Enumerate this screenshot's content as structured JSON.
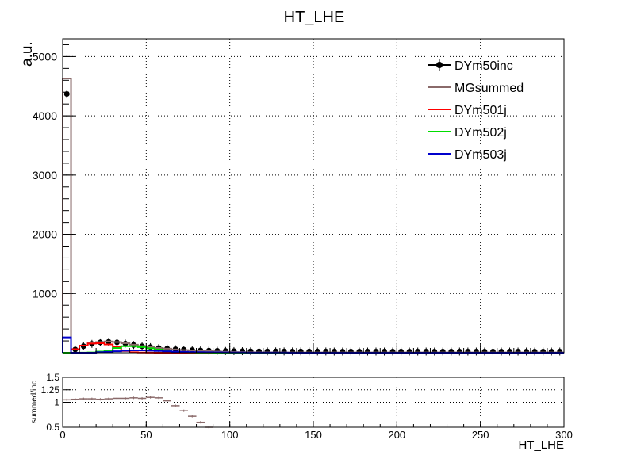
{
  "chart_data": [
    {
      "type": "line",
      "title": "HT_LHE",
      "ylabel": "a.u.",
      "xlabel": "",
      "xlim": [
        0,
        300
      ],
      "ylim": [
        0,
        5300
      ],
      "xticks": [
        0,
        50,
        100,
        150,
        200,
        250,
        300
      ],
      "yticks": [
        1000,
        2000,
        3000,
        4000,
        5000
      ],
      "ytick_labels": [
        "1000",
        "2000",
        "3000",
        "4000",
        "5000"
      ],
      "grid": true,
      "legend_position": "top-right",
      "bin_width": 5,
      "series": [
        {
          "name": "DYm50inc",
          "color": "#000000",
          "style": "markers",
          "values": [
            4370,
            55,
            110,
            150,
            175,
            185,
            175,
            155,
            130,
            110,
            95,
            80,
            70,
            60,
            52,
            46,
            40,
            36,
            33,
            30,
            28,
            26,
            25,
            24,
            23,
            23,
            22,
            22,
            22,
            21,
            21,
            21,
            20,
            20,
            20,
            20,
            20,
            20,
            20,
            20,
            20,
            20,
            20,
            20,
            20,
            20,
            20,
            20,
            20,
            20,
            20,
            20,
            20,
            20,
            20,
            20,
            20,
            20,
            20,
            20
          ]
        },
        {
          "name": "MGsummed",
          "color": "#8a6a6a",
          "style": "hist",
          "values": [
            4630,
            60,
            120,
            160,
            180,
            190,
            180,
            160,
            135,
            112,
            95,
            80,
            68,
            56,
            46,
            38,
            32,
            26,
            20,
            16,
            12,
            10,
            8,
            7,
            6,
            6,
            5,
            5,
            5,
            5,
            5,
            5,
            5,
            5,
            5,
            5,
            5,
            5,
            5,
            5,
            5,
            5,
            5,
            5,
            5,
            5,
            5,
            5,
            5,
            5,
            5,
            5,
            5,
            5,
            5,
            5,
            5,
            5,
            5,
            5
          ]
        },
        {
          "name": "DYm501j",
          "color": "#ff0000",
          "style": "hist",
          "values": [
            0,
            60,
            120,
            155,
            160,
            140,
            95,
            30,
            8,
            3,
            1,
            0,
            0,
            0,
            0,
            0,
            0,
            0,
            0,
            0,
            0,
            0,
            0,
            0,
            0,
            0,
            0,
            0,
            0,
            0,
            0,
            0,
            0,
            0,
            0,
            0,
            0,
            0,
            0,
            0,
            0,
            0,
            0,
            0,
            0,
            0,
            0,
            0,
            0,
            0,
            0,
            0,
            0,
            0,
            0,
            0,
            0,
            0,
            0,
            0
          ]
        },
        {
          "name": "DYm502j",
          "color": "#00dd00",
          "style": "hist",
          "values": [
            0,
            0,
            2,
            5,
            20,
            40,
            80,
            110,
            110,
            95,
            75,
            55,
            35,
            20,
            10,
            5,
            2,
            1,
            0,
            0,
            0,
            0,
            0,
            0,
            0,
            0,
            0,
            0,
            0,
            0,
            0,
            0,
            0,
            0,
            0,
            0,
            0,
            0,
            0,
            0,
            0,
            0,
            0,
            0,
            0,
            0,
            0,
            0,
            0,
            0,
            0,
            0,
            0,
            0,
            0,
            0,
            0,
            0,
            0,
            0
          ]
        },
        {
          "name": "DYm503j",
          "color": "#0000cc",
          "style": "hist",
          "values": [
            260,
            0,
            0,
            0,
            10,
            15,
            25,
            35,
            40,
            40,
            35,
            30,
            25,
            20,
            15,
            12,
            10,
            8,
            6,
            5,
            4,
            3,
            2,
            2,
            1,
            1,
            1,
            0,
            0,
            0,
            0,
            0,
            0,
            0,
            0,
            0,
            0,
            0,
            0,
            0,
            0,
            0,
            0,
            0,
            0,
            0,
            0,
            0,
            0,
            0,
            0,
            0,
            0,
            0,
            0,
            0,
            0,
            0,
            0,
            0
          ]
        }
      ]
    },
    {
      "type": "line",
      "title": "",
      "ylabel": "summed/inc",
      "xlabel": "HT_LHE",
      "xlim": [
        0,
        300
      ],
      "ylim": [
        0.5,
        1.5
      ],
      "xticks": [
        0,
        50,
        100,
        150,
        200,
        250,
        300
      ],
      "xtick_labels": [
        "0",
        "50",
        "100",
        "150",
        "200",
        "250",
        "300"
      ],
      "yticks": [
        0.5,
        1,
        1.25,
        1.5
      ],
      "ytick_labels": [
        "0.5",
        "1",
        "1.25",
        "1.5"
      ],
      "grid": true,
      "bin_width": 5,
      "series": [
        {
          "name": "",
          "color": "#8a6a6a",
          "values": [
            1.05,
            1.06,
            1.07,
            1.07,
            1.06,
            1.07,
            1.08,
            1.08,
            1.09,
            1.08,
            1.1,
            1.09,
            1.03,
            0.93,
            0.83,
            0.72,
            0.6,
            0.5
          ]
        }
      ]
    }
  ]
}
